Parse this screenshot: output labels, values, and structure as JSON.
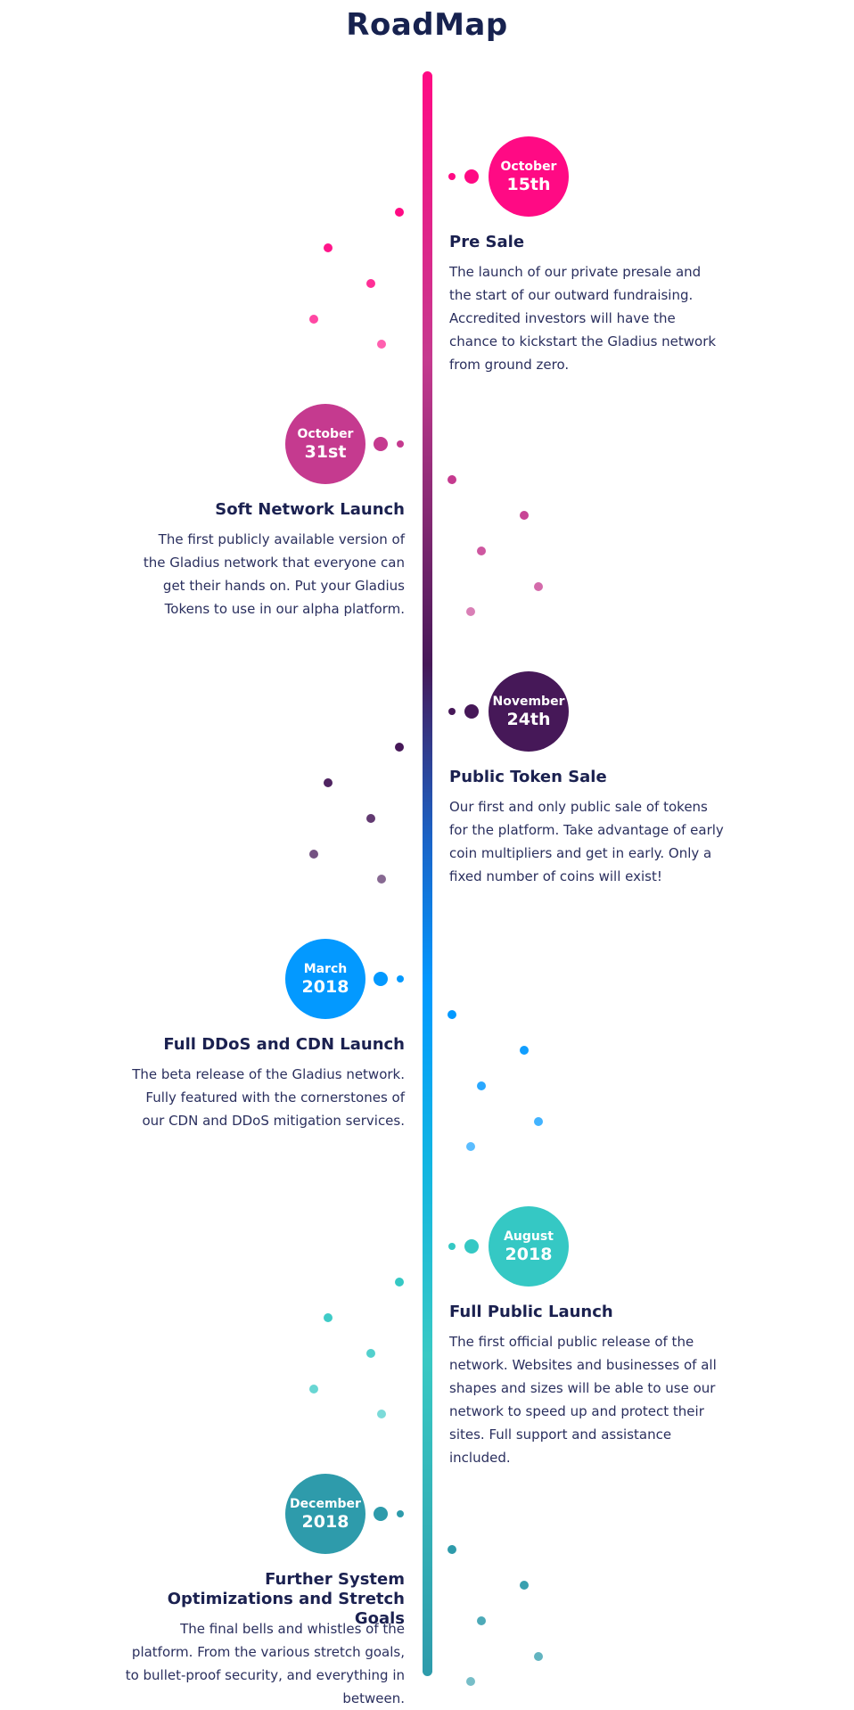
{
  "page": {
    "title": "RoadMap"
  },
  "milestones": [
    {
      "month": "October",
      "day": "15th",
      "title": "Pre Sale",
      "description": "The launch of our private presale and the start of our outward fundraising. Accredited investors will have the chance to kickstart the Gladius network from ground zero.",
      "color": "#ff0a84"
    },
    {
      "month": "October",
      "day": "31st",
      "title": "Soft Network Launch",
      "description": "The first publicly available version of the Gladius network that everyone can get their hands on. Put your Gladius Tokens to use in our alpha platform.",
      "color": "#c53a8f"
    },
    {
      "month": "November",
      "day": "24th",
      "title": "Public Token Sale",
      "description": "Our first and only public sale of tokens for the platform. Take advantage of early coin multipliers and get in early. Only a fixed number of coins will exist!",
      "color": "#461858"
    },
    {
      "month": "March",
      "day": "2018",
      "title": "Full DDoS and CDN Launch",
      "description": "The beta release of the Gladius network. Fully featured with the cornerstones of our CDN and DDoS mitigation services.",
      "color": "#0399ff"
    },
    {
      "month": "August",
      "day": "2018",
      "title": "Full Public Launch",
      "description": "The first official public release of the network. Websites and businesses of all shapes and sizes will be able to use our network to speed up and protect their sites. Full support and assistance included.",
      "color": "#35c8c4"
    },
    {
      "month": "December",
      "day": "2018",
      "title": "Further System Optimizations and Stretch Goals",
      "description": "The final bells and whistles of the platform. From the various stretch goals, to bullet-proof security, and everything in between.",
      "color": "#2e9bab"
    }
  ]
}
